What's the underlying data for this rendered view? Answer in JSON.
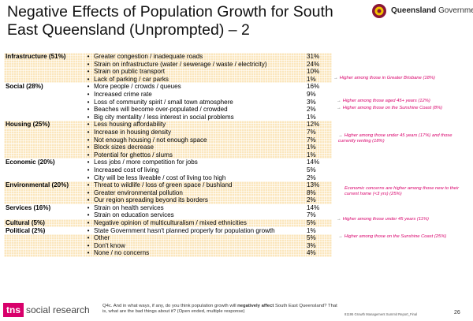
{
  "title": "Negative Effects of Population Growth for South East Queensland (Unprompted) – 2",
  "logo": {
    "brand": "Queensland",
    "suffix": " Government"
  },
  "rows": [
    {
      "cat": "Infrastructure (51%)",
      "text": "Greater congestion / inadequate roads",
      "pct": "31%",
      "shaded": true
    },
    {
      "cat": "",
      "text": "Strain on infrastructure (water / sewerage / waste / electricity)",
      "pct": "24%",
      "shaded": true
    },
    {
      "cat": "",
      "text": "Strain on public transport",
      "pct": "10%",
      "shaded": true
    },
    {
      "cat": "",
      "text": "Lack of parking / car parks",
      "pct": "1%",
      "shaded": true
    },
    {
      "cat": "Social (28%)",
      "text": "More people / crowds / queues",
      "pct": "16%",
      "shaded": false
    },
    {
      "cat": "",
      "text": "Increased crime rate",
      "pct": "9%",
      "shaded": false
    },
    {
      "cat": "",
      "text": "Loss of community spirit / small town atmosphere",
      "pct": "3%",
      "shaded": false
    },
    {
      "cat": "",
      "text": "Beaches will become over-populated / crowded",
      "pct": "2%",
      "shaded": false
    },
    {
      "cat": "",
      "text": "Big city mentality / less interest in social problems",
      "pct": "1%",
      "shaded": false
    },
    {
      "cat": "Housing (25%)",
      "text": "Less housing affordability",
      "pct": "12%",
      "shaded": true
    },
    {
      "cat": "",
      "text": "Increase in housing density",
      "pct": "7%",
      "shaded": true
    },
    {
      "cat": "",
      "text": "Not enough housing / not enough space",
      "pct": "7%",
      "shaded": true
    },
    {
      "cat": "",
      "text": "Block sizes decrease",
      "pct": "1%",
      "shaded": true
    },
    {
      "cat": "",
      "text": "Potential for ghettos / slums",
      "pct": "1%",
      "shaded": true
    },
    {
      "cat": "Economic (20%)",
      "text": "Less jobs / more competition for jobs",
      "pct": "14%",
      "shaded": false
    },
    {
      "cat": "",
      "text": "Increased cost of living",
      "pct": "5%",
      "shaded": false
    },
    {
      "cat": "",
      "text": "City will be less liveable / cost of living too high",
      "pct": "2%",
      "shaded": false
    },
    {
      "cat": "Environmental (20%)",
      "text": "Threat to wildlife / loss of green space / bushland",
      "pct": "13%",
      "shaded": true
    },
    {
      "cat": "",
      "text": "Greater environmental pollution",
      "pct": "8%",
      "shaded": true
    },
    {
      "cat": "",
      "text": "Our region spreading beyond its borders",
      "pct": "2%",
      "shaded": true
    },
    {
      "cat": "Services (16%)",
      "text": "Strain on health services",
      "pct": "14%",
      "shaded": false
    },
    {
      "cat": "",
      "text": "Strain on education services",
      "pct": "7%",
      "shaded": false
    },
    {
      "cat": "Cultural (5%)",
      "text": "Negative opinion of multiculturalism / mixed ethnicities",
      "pct": "5%",
      "shaded": true
    },
    {
      "cat": "Political (2%)",
      "text": "State Government hasn't planned properly for population growth",
      "pct": "1%",
      "shaded": false
    },
    {
      "cat": "",
      "text": "Other",
      "pct": "5%",
      "shaded": true
    },
    {
      "cat": "",
      "text": "Don't know",
      "pct": "3%",
      "shaded": true
    },
    {
      "cat": "",
      "text": "None / no concerns",
      "pct": "4%",
      "shaded": true
    }
  ],
  "notes": {
    "transport": "Higher among those in Greater Brisbane (18%)",
    "crime": "Higher among those aged 45+ years (12%)",
    "community": "Higher among those on the Sunshine Coast (8%)",
    "housing": "Higher among those under 45 years (17%) and those currently renting (18%)",
    "economic": "Economic concerns are higher among those new to their current home (<3 yrs) (25%)",
    "pollution": "Higher among those under 45 years (11%)",
    "health": "Higher among those on the Sunshine Coast (25%)"
  },
  "footer": {
    "brand_mark": "tns",
    "brand_words": "social research",
    "question_prefix": "Q4c. And in what ways, if any, do you think population growth will ",
    "question_bold": "negatively affect",
    "question_suffix": " South East Queensland? That is, what are the bad things about it? (Open ended, multiple response)",
    "report": "81195 Growth Management Summit Report_Final",
    "page": "26"
  },
  "colors": {
    "row_shade": "#fbe6bd",
    "accent": "#d8006b"
  }
}
